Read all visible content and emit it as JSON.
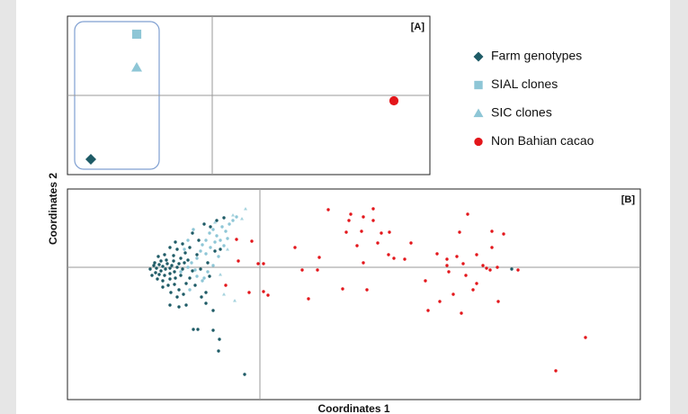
{
  "chart_data": [
    {
      "type": "scatter",
      "panel_label": "[A]",
      "legend": "right",
      "xlim": [
        -161,
        242
      ],
      "ylim": [
        -88,
        88
      ],
      "series": [
        {
          "name": "Farm genotypes",
          "color": "#1e5b66",
          "marker": "diamond",
          "x": [
            -135
          ],
          "values": [
            -71
          ]
        },
        {
          "name": "SIAL clones",
          "color": "#8ec6d6",
          "marker": "square",
          "x": [
            -84
          ],
          "values": [
            68
          ]
        },
        {
          "name": "SIC clones",
          "color": "#8ec6d6",
          "marker": "triangle",
          "x": [
            -84
          ],
          "values": [
            31
          ]
        },
        {
          "name": "Non Bahian cacao",
          "color": "#e3161b",
          "marker": "circle",
          "x": [
            202
          ],
          "values": [
            -6
          ]
        }
      ]
    },
    {
      "type": "scatter",
      "panel_label": "[B]",
      "x_label": "Coordinates 1",
      "y_label": "Coordinates 2",
      "xlim": [
        -214,
        423
      ],
      "ylim": [
        -147,
        87
      ],
      "series": [
        {
          "name": "Farm genotypes",
          "color": "#1e5b66",
          "marker": "circle",
          "x": [
            -122,
            -118,
            -115,
            -112,
            -110,
            -108,
            -105,
            -103,
            -100,
            -98,
            -116,
            -112,
            -106,
            -100,
            -95,
            -92,
            -90,
            -96,
            -104,
            -110,
            -117,
            -120,
            -114,
            -108,
            -100,
            -94,
            -88,
            -86,
            -84,
            -88,
            -96,
            -106,
            -113,
            -102,
            -108,
            -95,
            -90,
            -82,
            -85,
            -92,
            -99,
            -78,
            -75,
            -80,
            -83,
            -92,
            -100,
            -94,
            -86,
            -78,
            -70,
            -72,
            -65,
            -60,
            -52,
            -74,
            -69,
            -52,
            -45,
            -46,
            -17,
            -100,
            -90,
            -82,
            -60,
            -68,
            -75,
            -62,
            -55,
            -48,
            -40,
            -66,
            -56,
            -58,
            -50,
            -44,
            280
          ],
          "values": [
            -2,
            2,
            -1,
            3,
            -4,
            1,
            -2,
            4,
            -1,
            2,
            -6,
            -8,
            -9,
            -7,
            -5,
            0,
            4,
            7,
            8,
            7,
            5,
            -9,
            -13,
            -15,
            -13,
            -12,
            -9,
            -2,
            5,
            10,
            13,
            14,
            12,
            -20,
            -22,
            -19,
            -25,
            -18,
            -30,
            -33,
            -28,
            -12,
            -4,
            8,
            16,
            20,
            22,
            28,
            26,
            22,
            14,
            -20,
            -33,
            -40,
            -48,
            -69,
            -69,
            -70,
            -80,
            -93,
            -119,
            -42,
            -44,
            -42,
            -28,
            30,
            38,
            48,
            45,
            52,
            55,
            -2,
            -10,
            5,
            18,
            20,
            -2
          ]
        },
        {
          "name": "SIAL clones",
          "color": "#8ec6d6",
          "marker": "circle",
          "x": [
            -80,
            -76,
            -72,
            -70,
            -66,
            -64,
            -60,
            -56,
            -52,
            -48,
            -44,
            -42,
            -38,
            -34,
            -30,
            -26,
            -60,
            -55,
            -50,
            -46,
            -40,
            -36,
            -70,
            -64,
            -58,
            -52,
            -74,
            -80,
            -84,
            -78,
            -88,
            -62
          ],
          "values": [
            0,
            5,
            -3,
            10,
            18,
            25,
            30,
            38,
            42,
            35,
            30,
            45,
            40,
            48,
            52,
            56,
            15,
            22,
            28,
            12,
            24,
            32,
            -10,
            -15,
            -5,
            2,
            42,
            30,
            20,
            -25,
            -5,
            -12
          ]
        },
        {
          "name": "SIC clones",
          "color": "#a6d3de",
          "marker": "triangle",
          "x": [
            -16,
            -28,
            -40,
            -30,
            -50,
            -20,
            -36,
            -44
          ],
          "values": [
            65,
            -37,
            -30,
            58,
            50,
            54,
            20,
            -8
          ]
        },
        {
          "name": "Non Bahian cacao",
          "color": "#e3161b",
          "marker": "circle",
          "x": [
            76,
            101,
            115,
            126,
            99,
            126,
            231,
            96,
            113,
            135,
            144,
            168,
            258,
            271,
            222,
            -9,
            -26,
            108,
            131,
            39,
            66,
            143,
            149,
            161,
            197,
            208,
            219,
            258,
            241,
            115,
            -2,
            4,
            47,
            64,
            208,
            210,
            226,
            248,
            252,
            256,
            264,
            287,
            184,
            229,
            241,
            -38,
            -12,
            4,
            9,
            92,
            54,
            119,
            200,
            215,
            237,
            265,
            187,
            224,
            362,
            329,
            -24
          ],
          "values": [
            64,
            59,
            56,
            65,
            52,
            52,
            59,
            39,
            40,
            38,
            39,
            27,
            40,
            37,
            39,
            29,
            31,
            24,
            27,
            22,
            11,
            14,
            10,
            9,
            15,
            9,
            12,
            22,
            14,
            5,
            4,
            4,
            -3,
            -3,
            2,
            -5,
            4,
            2,
            -1,
            -3,
            0,
            -3,
            -15,
            -9,
            -18,
            -20,
            -28,
            -27,
            -31,
            -24,
            -35,
            -25,
            -38,
            -30,
            -25,
            -38,
            -48,
            -51,
            -78,
            -115,
            7
          ]
        }
      ]
    }
  ]
}
